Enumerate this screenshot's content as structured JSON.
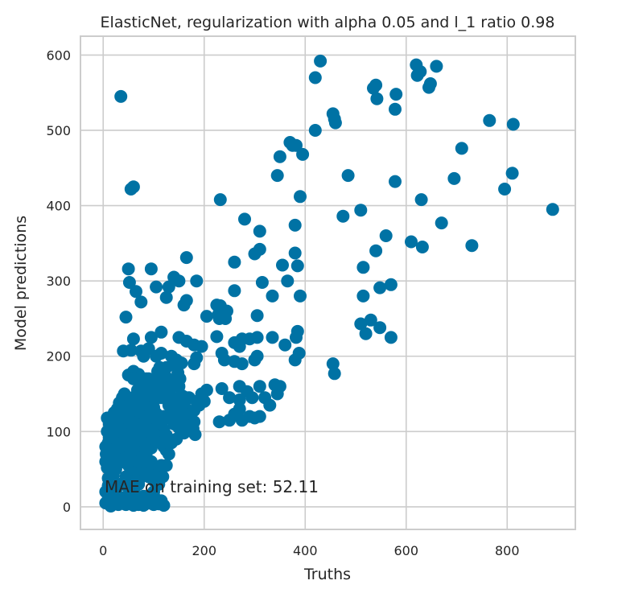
{
  "chart_data": {
    "type": "scatter",
    "title": "ElasticNet, regularization with alpha 0.05 and l_1 ratio 0.98",
    "xlabel": "Truths",
    "ylabel": "Model predictions",
    "xlim": [
      -45,
      935
    ],
    "ylim": [
      -30,
      625
    ],
    "xticks": [
      0,
      200,
      400,
      600,
      800
    ],
    "yticks": [
      0,
      100,
      200,
      300,
      400,
      500,
      600
    ],
    "grid": true,
    "annotation": "MAE on training set: 52.11",
    "color": "#0072a4",
    "points": [
      [
        35,
        545
      ],
      [
        55,
        422
      ],
      [
        60,
        425
      ],
      [
        430,
        592
      ],
      [
        420,
        570
      ],
      [
        620,
        587
      ],
      [
        628,
        578
      ],
      [
        622,
        573
      ],
      [
        660,
        585
      ],
      [
        648,
        562
      ],
      [
        645,
        557
      ],
      [
        540,
        560
      ],
      [
        535,
        556
      ],
      [
        542,
        542
      ],
      [
        580,
        548
      ],
      [
        578,
        528
      ],
      [
        455,
        522
      ],
      [
        458,
        515
      ],
      [
        460,
        510
      ],
      [
        420,
        500
      ],
      [
        765,
        513
      ],
      [
        812,
        508
      ],
      [
        370,
        484
      ],
      [
        375,
        480
      ],
      [
        382,
        480
      ],
      [
        350,
        465
      ],
      [
        395,
        468
      ],
      [
        485,
        440
      ],
      [
        345,
        440
      ],
      [
        695,
        436
      ],
      [
        578,
        432
      ],
      [
        810,
        443
      ],
      [
        795,
        422
      ],
      [
        710,
        476
      ],
      [
        390,
        412
      ],
      [
        232,
        408
      ],
      [
        630,
        408
      ],
      [
        510,
        394
      ],
      [
        475,
        386
      ],
      [
        280,
        382
      ],
      [
        670,
        377
      ],
      [
        890,
        395
      ],
      [
        380,
        374
      ],
      [
        560,
        360
      ],
      [
        310,
        366
      ],
      [
        610,
        352
      ],
      [
        632,
        345
      ],
      [
        730,
        347
      ],
      [
        540,
        340
      ],
      [
        380,
        337
      ],
      [
        300,
        336
      ],
      [
        310,
        342
      ],
      [
        165,
        331
      ],
      [
        260,
        325
      ],
      [
        355,
        321
      ],
      [
        385,
        320
      ],
      [
        515,
        318
      ],
      [
        50,
        316
      ],
      [
        95,
        316
      ],
      [
        140,
        305
      ],
      [
        150,
        300
      ],
      [
        185,
        300
      ],
      [
        52,
        298
      ],
      [
        105,
        292
      ],
      [
        130,
        292
      ],
      [
        570,
        295
      ],
      [
        548,
        291
      ],
      [
        315,
        298
      ],
      [
        365,
        300
      ],
      [
        260,
        287
      ],
      [
        335,
        280
      ],
      [
        390,
        280
      ],
      [
        515,
        280
      ],
      [
        65,
        286
      ],
      [
        75,
        272
      ],
      [
        125,
        278
      ],
      [
        160,
        268
      ],
      [
        165,
        274
      ],
      [
        225,
        268
      ],
      [
        232,
        267
      ],
      [
        245,
        260
      ],
      [
        228,
        255
      ],
      [
        205,
        253
      ],
      [
        230,
        250
      ],
      [
        242,
        250
      ],
      [
        305,
        254
      ],
      [
        45,
        252
      ],
      [
        530,
        248
      ],
      [
        510,
        243
      ],
      [
        548,
        238
      ],
      [
        520,
        230
      ],
      [
        570,
        225
      ],
      [
        335,
        225
      ],
      [
        385,
        233
      ],
      [
        382,
        225
      ],
      [
        60,
        223
      ],
      [
        95,
        225
      ],
      [
        115,
        232
      ],
      [
        150,
        225
      ],
      [
        165,
        220
      ],
      [
        195,
        213
      ],
      [
        180,
        215
      ],
      [
        225,
        226
      ],
      [
        260,
        218
      ],
      [
        270,
        213
      ],
      [
        275,
        223
      ],
      [
        290,
        223
      ],
      [
        305,
        225
      ],
      [
        360,
        215
      ],
      [
        388,
        204
      ],
      [
        380,
        195
      ],
      [
        55,
        208
      ],
      [
        40,
        207
      ],
      [
        75,
        207
      ],
      [
        80,
        200
      ],
      [
        90,
        210
      ],
      [
        105,
        200
      ],
      [
        115,
        204
      ],
      [
        135,
        200
      ],
      [
        145,
        195
      ],
      [
        155,
        191
      ],
      [
        180,
        190
      ],
      [
        185,
        198
      ],
      [
        235,
        204
      ],
      [
        240,
        195
      ],
      [
        260,
        193
      ],
      [
        275,
        190
      ],
      [
        300,
        195
      ],
      [
        305,
        200
      ],
      [
        455,
        190
      ],
      [
        458,
        177
      ],
      [
        50,
        175
      ],
      [
        60,
        180
      ],
      [
        70,
        176
      ],
      [
        85,
        170
      ],
      [
        100,
        166
      ],
      [
        110,
        172
      ],
      [
        125,
        172
      ],
      [
        135,
        168
      ],
      [
        150,
        160
      ],
      [
        160,
        146
      ],
      [
        170,
        145
      ],
      [
        200,
        140
      ],
      [
        205,
        155
      ],
      [
        235,
        157
      ],
      [
        250,
        145
      ],
      [
        270,
        160
      ],
      [
        285,
        153
      ],
      [
        310,
        160
      ],
      [
        340,
        162
      ],
      [
        350,
        160
      ],
      [
        345,
        150
      ],
      [
        330,
        135
      ],
      [
        295,
        145
      ],
      [
        320,
        145
      ],
      [
        270,
        142
      ],
      [
        290,
        120
      ],
      [
        300,
        118
      ],
      [
        310,
        120
      ],
      [
        250,
        115
      ],
      [
        270,
        130
      ],
      [
        275,
        115
      ],
      [
        260,
        123
      ],
      [
        230,
        113
      ],
      [
        180,
        113
      ],
      [
        140,
        125
      ],
      [
        130,
        135
      ],
      [
        115,
        145
      ],
      [
        105,
        150
      ],
      [
        95,
        140
      ],
      [
        85,
        130
      ],
      [
        75,
        120
      ],
      [
        65,
        110
      ],
      [
        60,
        100
      ],
      [
        55,
        95
      ],
      [
        50,
        88
      ],
      [
        45,
        80
      ],
      [
        40,
        72
      ],
      [
        35,
        65
      ],
      [
        30,
        58
      ],
      [
        25,
        50
      ],
      [
        20,
        42
      ],
      [
        15,
        35
      ],
      [
        10,
        28
      ],
      [
        5,
        20
      ],
      [
        5,
        5
      ],
      [
        10,
        10
      ],
      [
        15,
        1
      ],
      [
        20,
        15
      ],
      [
        25,
        22
      ],
      [
        30,
        3
      ],
      [
        35,
        30
      ],
      [
        40,
        12
      ],
      [
        45,
        40
      ],
      [
        50,
        25
      ],
      [
        55,
        48
      ],
      [
        60,
        6
      ],
      [
        65,
        55
      ],
      [
        70,
        30
      ],
      [
        75,
        62
      ],
      [
        80,
        14
      ],
      [
        85,
        70
      ],
      [
        90,
        40
      ],
      [
        95,
        78
      ],
      [
        100,
        20
      ],
      [
        105,
        86
      ],
      [
        110,
        50
      ],
      [
        115,
        94
      ],
      [
        120,
        2
      ],
      [
        125,
        55
      ],
      [
        120,
        102
      ],
      [
        115,
        110
      ],
      [
        110,
        118
      ],
      [
        105,
        124
      ],
      [
        100,
        132
      ],
      [
        95,
        105
      ],
      [
        90,
        98
      ],
      [
        85,
        92
      ],
      [
        80,
        85
      ],
      [
        75,
        78
      ],
      [
        70,
        72
      ],
      [
        65,
        66
      ],
      [
        60,
        60
      ],
      [
        55,
        54
      ],
      [
        50,
        115
      ],
      [
        45,
        108
      ],
      [
        40,
        102
      ],
      [
        35,
        96
      ],
      [
        30,
        90
      ],
      [
        25,
        84
      ],
      [
        20,
        78
      ],
      [
        15,
        72
      ],
      [
        10,
        66
      ],
      [
        5,
        60
      ],
      [
        8,
        100
      ],
      [
        12,
        110
      ],
      [
        18,
        120
      ],
      [
        22,
        125
      ],
      [
        28,
        130
      ],
      [
        32,
        138
      ],
      [
        38,
        145
      ],
      [
        42,
        150
      ],
      [
        48,
        100
      ],
      [
        52,
        130
      ],
      [
        58,
        140
      ],
      [
        62,
        146
      ],
      [
        68,
        155
      ],
      [
        72,
        160
      ],
      [
        78,
        165
      ],
      [
        82,
        138
      ],
      [
        88,
        148
      ],
      [
        92,
        158
      ],
      [
        98,
        162
      ],
      [
        102,
        170
      ],
      [
        108,
        180
      ],
      [
        112,
        185
      ],
      [
        118,
        175
      ],
      [
        122,
        165
      ],
      [
        128,
        158
      ],
      [
        132,
        150
      ],
      [
        138,
        142
      ],
      [
        142,
        188
      ],
      [
        148,
        178
      ],
      [
        152,
        170
      ],
      [
        158,
        140
      ],
      [
        162,
        132
      ],
      [
        168,
        122
      ],
      [
        172,
        112
      ],
      [
        178,
        104
      ],
      [
        182,
        96
      ],
      [
        70,
        90
      ],
      [
        75,
        100
      ],
      [
        80,
        110
      ],
      [
        85,
        115
      ],
      [
        35,
        110
      ],
      [
        30,
        120
      ],
      [
        25,
        105
      ],
      [
        20,
        95
      ],
      [
        15,
        90
      ],
      [
        10,
        85
      ],
      [
        5,
        80
      ],
      [
        40,
        85
      ],
      [
        45,
        92
      ],
      [
        50,
        70
      ],
      [
        55,
        75
      ],
      [
        60,
        82
      ],
      [
        65,
        88
      ],
      [
        70,
        95
      ],
      [
        30,
        75
      ],
      [
        25,
        65
      ],
      [
        20,
        55
      ],
      [
        15,
        45
      ],
      [
        10,
        38
      ],
      [
        8,
        52
      ],
      [
        12,
        60
      ],
      [
        18,
        68
      ],
      [
        22,
        74
      ],
      [
        28,
        80
      ],
      [
        32,
        88
      ],
      [
        38,
        92
      ],
      [
        42,
        98
      ],
      [
        48,
        104
      ],
      [
        52,
        112
      ],
      [
        58,
        118
      ],
      [
        62,
        124
      ],
      [
        68,
        128
      ],
      [
        72,
        134
      ],
      [
        78,
        140
      ],
      [
        100,
        100
      ],
      [
        105,
        95
      ],
      [
        110,
        90
      ],
      [
        115,
        85
      ],
      [
        120,
        80
      ],
      [
        125,
        75
      ],
      [
        130,
        70
      ],
      [
        95,
        60
      ],
      [
        90,
        55
      ],
      [
        85,
        50
      ],
      [
        80,
        45
      ],
      [
        75,
        40
      ],
      [
        70,
        35
      ],
      [
        65,
        28
      ],
      [
        60,
        22
      ],
      [
        55,
        15
      ],
      [
        50,
        8
      ],
      [
        45,
        3
      ],
      [
        60,
        2
      ],
      [
        70,
        3
      ],
      [
        80,
        2
      ],
      [
        90,
        5
      ],
      [
        100,
        3
      ],
      [
        110,
        4
      ],
      [
        115,
        8
      ],
      [
        105,
        10
      ],
      [
        95,
        12
      ],
      [
        85,
        8
      ],
      [
        75,
        10
      ],
      [
        65,
        12
      ],
      [
        40,
        120
      ],
      [
        45,
        128
      ],
      [
        50,
        135
      ],
      [
        55,
        142
      ],
      [
        35,
        128
      ],
      [
        65,
        100
      ],
      [
        70,
        108
      ],
      [
        80,
        100
      ],
      [
        90,
        118
      ],
      [
        100,
        125
      ],
      [
        110,
        112
      ],
      [
        120,
        120
      ],
      [
        130,
        118
      ],
      [
        140,
        110
      ],
      [
        150,
        105
      ],
      [
        160,
        98
      ],
      [
        170,
        120
      ],
      [
        180,
        128
      ],
      [
        190,
        135
      ],
      [
        150,
        122
      ],
      [
        140,
        132
      ],
      [
        130,
        140
      ],
      [
        120,
        148
      ],
      [
        160,
        115
      ],
      [
        175,
        108
      ],
      [
        165,
        102
      ],
      [
        185,
        140
      ],
      [
        195,
        150
      ],
      [
        145,
        90
      ],
      [
        135,
        85
      ],
      [
        125,
        95
      ],
      [
        60,
        170
      ],
      [
        70,
        150
      ],
      [
        75,
        135
      ],
      [
        25,
        100
      ],
      [
        30,
        110
      ],
      [
        35,
        118
      ],
      [
        15,
        100
      ],
      [
        20,
        110
      ],
      [
        8,
        118
      ],
      [
        12,
        92
      ],
      [
        6,
        70
      ],
      [
        90,
        170
      ],
      [
        100,
        155
      ],
      [
        110,
        145
      ],
      [
        115,
        160
      ],
      [
        125,
        185
      ],
      [
        155,
        148
      ],
      [
        40,
        60
      ],
      [
        45,
        65
      ],
      [
        50,
        55
      ],
      [
        55,
        62
      ],
      [
        60,
        45
      ],
      [
        65,
        35
      ],
      [
        100,
        35
      ],
      [
        105,
        42
      ],
      [
        110,
        30
      ],
      [
        115,
        55
      ],
      [
        118,
        40
      ]
    ]
  }
}
